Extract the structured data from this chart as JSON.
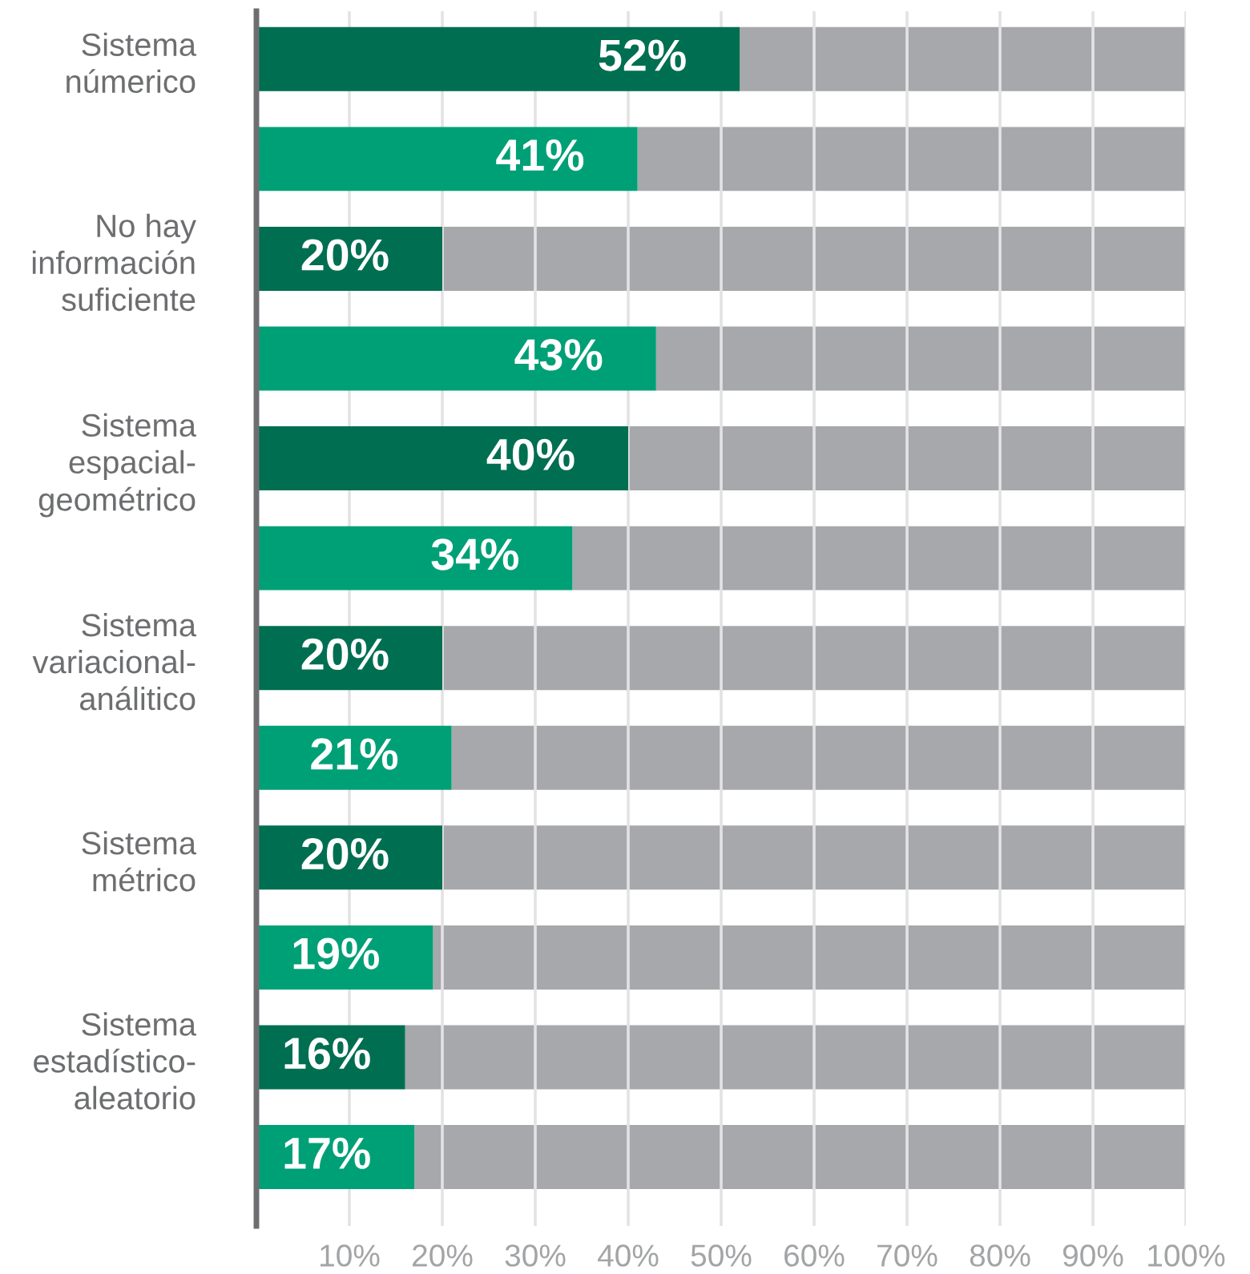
{
  "chart_data": {
    "type": "bar",
    "orientation": "horizontal",
    "stacked": true,
    "categories": [
      "Sistema\nnúmerico",
      null,
      "No hay\ninformación\nsuficiente",
      null,
      "Sistema\nespacial-\ngeométrico",
      null,
      "Sistema\nvariacional-\nanálitico",
      null,
      "Sistema\nmétrico",
      null,
      "Sistema\nestadístico-\naleatorio",
      null
    ],
    "xlim": [
      0,
      100
    ],
    "xticks": [
      {
        "value": 10,
        "label": "10%"
      },
      {
        "value": 20,
        "label": "20%"
      },
      {
        "value": 30,
        "label": "30%"
      },
      {
        "value": 40,
        "label": "40%"
      },
      {
        "value": 50,
        "label": "50%"
      },
      {
        "value": 60,
        "label": "60%"
      },
      {
        "value": 70,
        "label": "70%"
      },
      {
        "value": 80,
        "label": "80%"
      },
      {
        "value": 90,
        "label": "90%"
      },
      {
        "value": 100,
        "label": "100%"
      }
    ],
    "grid": "x",
    "series": [
      {
        "colors": [
          "#006f51",
          "#00a077",
          "#006f51",
          "#00a077",
          "#006f51",
          "#00a077",
          "#006f51",
          "#00a077",
          "#006f51",
          "#00a077",
          "#006f51",
          "#00a077"
        ],
        "values": [
          52,
          41,
          20,
          43,
          40,
          34,
          20,
          21,
          20,
          19,
          16,
          17
        ],
        "value_labels": [
          "52%",
          "41%",
          "20%",
          "43%",
          "40%",
          "34%",
          "20%",
          "21%",
          "20%",
          "19%",
          "16%",
          "17%"
        ]
      },
      {
        "color": "#a7a8ab",
        "values": [
          48,
          59,
          80,
          57,
          60,
          66,
          80,
          79,
          80,
          81,
          84,
          83
        ]
      }
    ]
  }
}
